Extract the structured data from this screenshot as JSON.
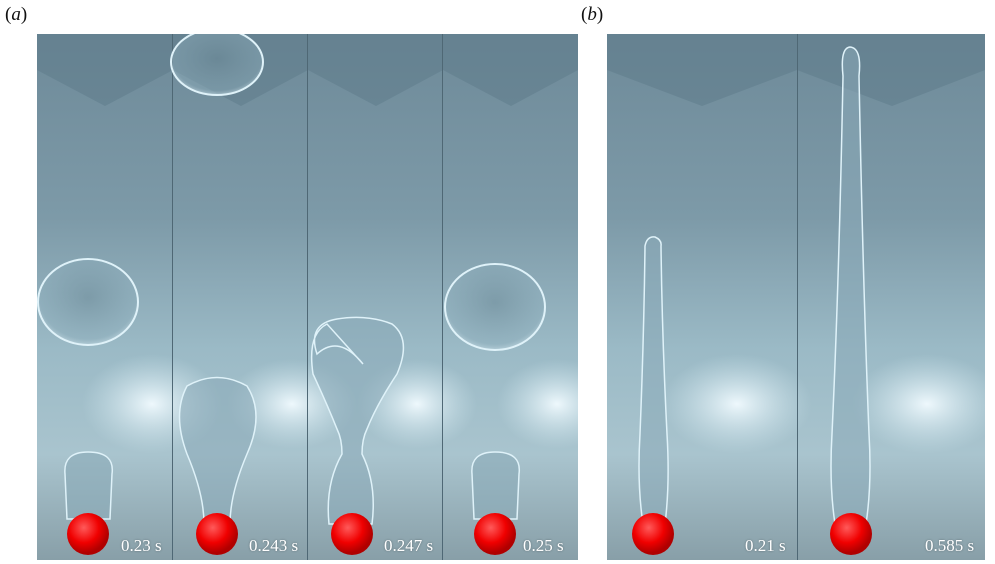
{
  "panels": [
    {
      "label": "a",
      "frames": [
        {
          "time": "0.23 s"
        },
        {
          "time": "0.243 s"
        },
        {
          "time": "0.247 s"
        },
        {
          "time": "0.25 s"
        }
      ]
    },
    {
      "label": "b",
      "frames": [
        {
          "time": "0.21 s"
        },
        {
          "time": "0.585 s"
        }
      ]
    }
  ],
  "colors": {
    "background_top": "#6f8c9b",
    "background_mid": "#8fb0bf",
    "glow": "#e9f6fb",
    "bubble_edge": "#d9eef7",
    "bead": "#ff1010"
  }
}
